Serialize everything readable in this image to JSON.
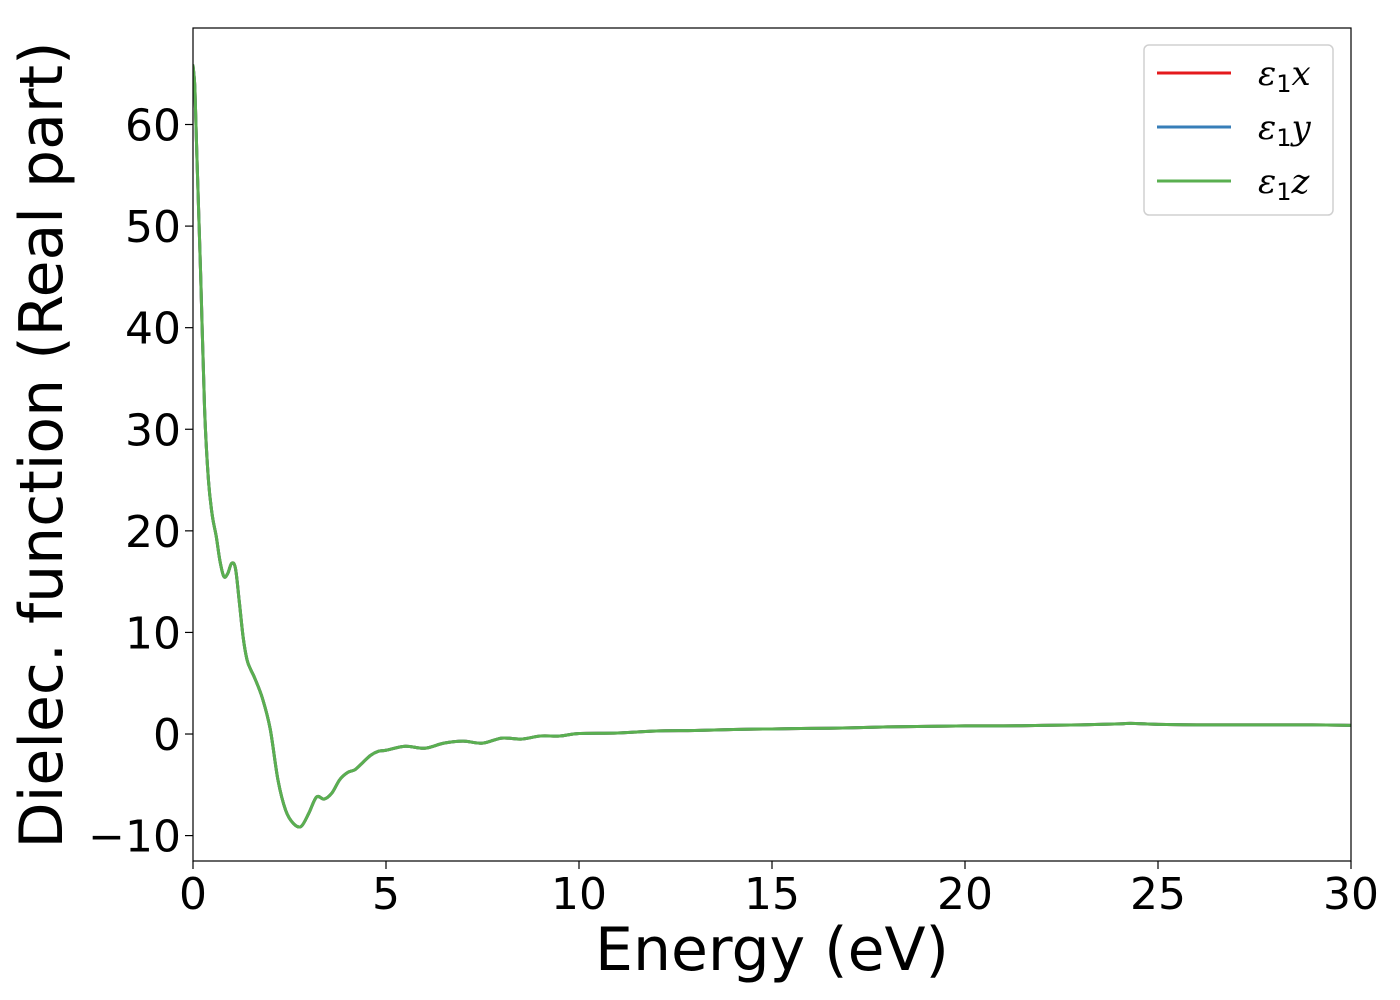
{
  "chart_data": {
    "type": "line",
    "xlabel": "Energy (eV)",
    "ylabel": "Dielec. function (Real part)",
    "xlim": [
      0,
      30
    ],
    "ylim": [
      -12.5,
      69.5
    ],
    "xticks": [
      0,
      5,
      10,
      15,
      20,
      25,
      30
    ],
    "xtick_labels": [
      "0",
      "5",
      "10",
      "15",
      "20",
      "25",
      "30"
    ],
    "yticks": [
      -10,
      0,
      10,
      20,
      30,
      40,
      50,
      60
    ],
    "ytick_labels": [
      "−10",
      "0",
      "10",
      "20",
      "30",
      "40",
      "50",
      "60"
    ],
    "grid": false,
    "legend_position": "top-right",
    "series": [
      {
        "name": "ε1x",
        "legend_base": "ε",
        "legend_sub": "1",
        "legend_var": "x",
        "color": "#e41a1c",
        "x": [
          0.0,
          0.05,
          0.1,
          0.2,
          0.3,
          0.4,
          0.5,
          0.6,
          0.7,
          0.8,
          0.9,
          1.0,
          1.1,
          1.2,
          1.3,
          1.4,
          1.5,
          1.6,
          1.8,
          2.0,
          2.2,
          2.4,
          2.6,
          2.8,
          3.0,
          3.2,
          3.4,
          3.6,
          3.8,
          4.0,
          4.2,
          4.4,
          4.6,
          4.8,
          5.0,
          5.5,
          6.0,
          6.5,
          7.0,
          7.5,
          8.0,
          8.5,
          9.0,
          9.5,
          10.0,
          11.0,
          12.0,
          13.0,
          14.0,
          15.0,
          16.0,
          17.0,
          18.0,
          19.0,
          20.0,
          21.0,
          22.0,
          23.0,
          24.0,
          24.3,
          25.0,
          26.0,
          27.0,
          28.0,
          29.0,
          30.0
        ],
        "y": [
          65.8,
          63.5,
          57.0,
          45.0,
          32.0,
          25.0,
          21.5,
          19.5,
          17.0,
          15.5,
          15.8,
          16.8,
          16.3,
          13.0,
          9.5,
          7.3,
          6.3,
          5.5,
          3.5,
          0.5,
          -4.5,
          -7.5,
          -8.8,
          -9.1,
          -7.8,
          -6.2,
          -6.4,
          -5.8,
          -4.5,
          -3.8,
          -3.5,
          -2.8,
          -2.1,
          -1.7,
          -1.6,
          -1.2,
          -1.4,
          -0.9,
          -0.7,
          -0.9,
          -0.4,
          -0.5,
          -0.2,
          -0.2,
          0.05,
          0.1,
          0.3,
          0.35,
          0.45,
          0.5,
          0.55,
          0.6,
          0.7,
          0.75,
          0.8,
          0.8,
          0.85,
          0.9,
          1.0,
          1.05,
          0.95,
          0.9,
          0.9,
          0.9,
          0.9,
          0.85
        ]
      },
      {
        "name": "ε1y",
        "legend_base": "ε",
        "legend_sub": "1",
        "legend_var": "y",
        "color": "#377eb8",
        "x": [
          0.0,
          0.05,
          0.1,
          0.2,
          0.3,
          0.4,
          0.5,
          0.6,
          0.7,
          0.8,
          0.9,
          1.0,
          1.1,
          1.2,
          1.3,
          1.4,
          1.5,
          1.6,
          1.8,
          2.0,
          2.2,
          2.4,
          2.6,
          2.8,
          3.0,
          3.2,
          3.4,
          3.6,
          3.8,
          4.0,
          4.2,
          4.4,
          4.6,
          4.8,
          5.0,
          5.5,
          6.0,
          6.5,
          7.0,
          7.5,
          8.0,
          8.5,
          9.0,
          9.5,
          10.0,
          11.0,
          12.0,
          13.0,
          14.0,
          15.0,
          16.0,
          17.0,
          18.0,
          19.0,
          20.0,
          21.0,
          22.0,
          23.0,
          24.0,
          24.3,
          25.0,
          26.0,
          27.0,
          28.0,
          29.0,
          30.0
        ],
        "y": [
          65.8,
          63.5,
          57.0,
          45.0,
          32.0,
          25.0,
          21.5,
          19.5,
          17.0,
          15.5,
          15.8,
          16.8,
          16.3,
          13.0,
          9.5,
          7.3,
          6.3,
          5.5,
          3.5,
          0.5,
          -4.5,
          -7.5,
          -8.8,
          -9.1,
          -7.8,
          -6.2,
          -6.4,
          -5.8,
          -4.5,
          -3.8,
          -3.5,
          -2.8,
          -2.1,
          -1.7,
          -1.6,
          -1.2,
          -1.4,
          -0.9,
          -0.7,
          -0.9,
          -0.4,
          -0.5,
          -0.2,
          -0.2,
          0.05,
          0.1,
          0.3,
          0.35,
          0.45,
          0.5,
          0.55,
          0.6,
          0.7,
          0.75,
          0.8,
          0.8,
          0.85,
          0.9,
          1.0,
          1.05,
          0.95,
          0.9,
          0.9,
          0.9,
          0.9,
          0.85
        ]
      },
      {
        "name": "ε1z",
        "legend_base": "ε",
        "legend_sub": "1",
        "legend_var": "z",
        "color": "#5aaf50",
        "x": [
          0.0,
          0.05,
          0.1,
          0.2,
          0.3,
          0.4,
          0.5,
          0.6,
          0.7,
          0.8,
          0.9,
          1.0,
          1.1,
          1.2,
          1.3,
          1.4,
          1.5,
          1.6,
          1.8,
          2.0,
          2.2,
          2.4,
          2.6,
          2.8,
          3.0,
          3.2,
          3.4,
          3.6,
          3.8,
          4.0,
          4.2,
          4.4,
          4.6,
          4.8,
          5.0,
          5.5,
          6.0,
          6.5,
          7.0,
          7.5,
          8.0,
          8.5,
          9.0,
          9.5,
          10.0,
          11.0,
          12.0,
          13.0,
          14.0,
          15.0,
          16.0,
          17.0,
          18.0,
          19.0,
          20.0,
          21.0,
          22.0,
          23.0,
          24.0,
          24.3,
          25.0,
          26.0,
          27.0,
          28.0,
          29.0,
          30.0
        ],
        "y": [
          65.8,
          63.5,
          57.0,
          45.0,
          32.0,
          25.0,
          21.5,
          19.5,
          17.0,
          15.5,
          15.8,
          16.8,
          16.3,
          13.0,
          9.5,
          7.3,
          6.3,
          5.5,
          3.5,
          0.5,
          -4.5,
          -7.5,
          -8.8,
          -9.1,
          -7.8,
          -6.2,
          -6.4,
          -5.8,
          -4.5,
          -3.8,
          -3.5,
          -2.8,
          -2.1,
          -1.7,
          -1.6,
          -1.2,
          -1.4,
          -0.9,
          -0.7,
          -0.9,
          -0.4,
          -0.5,
          -0.2,
          -0.2,
          0.05,
          0.1,
          0.3,
          0.35,
          0.45,
          0.5,
          0.55,
          0.6,
          0.7,
          0.75,
          0.8,
          0.8,
          0.85,
          0.9,
          1.0,
          1.05,
          0.95,
          0.9,
          0.9,
          0.9,
          0.9,
          0.85
        ]
      }
    ]
  }
}
